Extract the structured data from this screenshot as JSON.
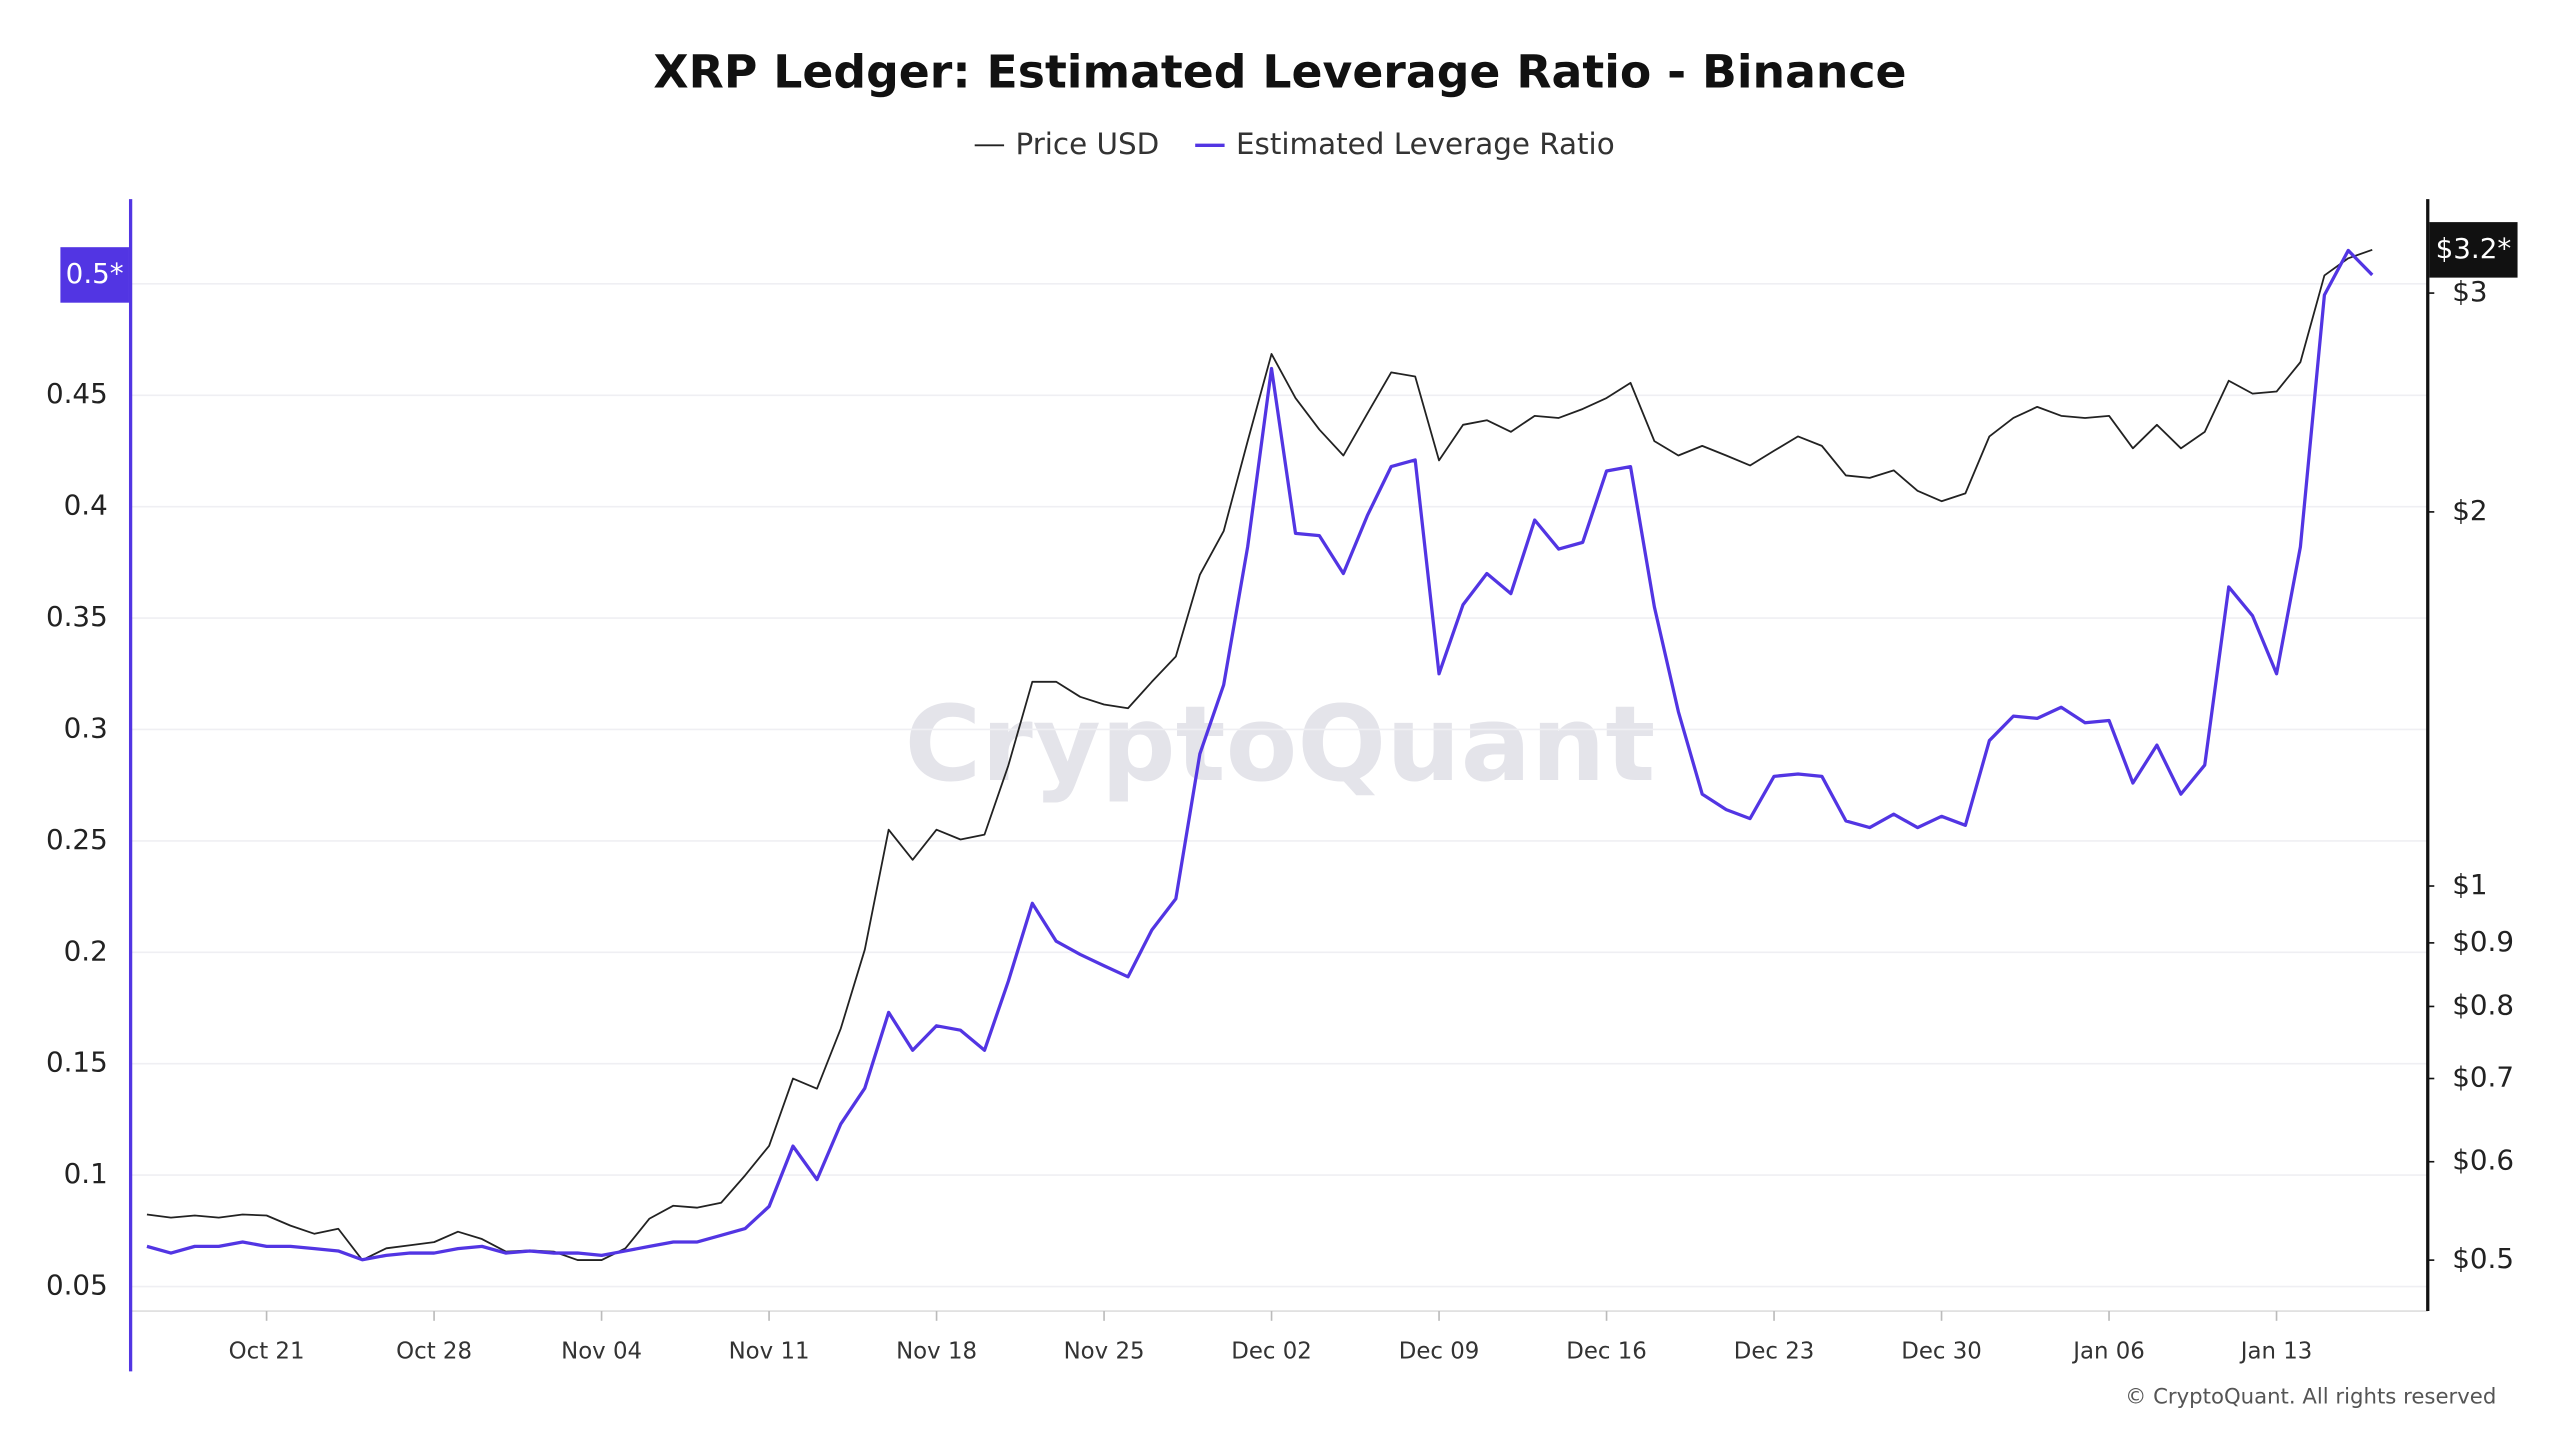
{
  "chart_data": {
    "type": "line",
    "title": "XRP Ledger: Estimated Leverage Ratio - Binance",
    "watermark": "CryptoQuant",
    "copyright": "© CryptoQuant. All rights reserved",
    "x": [
      "Oct 16",
      "Oct 17",
      "Oct 18",
      "Oct 19",
      "Oct 20",
      "Oct 21",
      "Oct 22",
      "Oct 23",
      "Oct 24",
      "Oct 25",
      "Oct 26",
      "Oct 27",
      "Oct 28",
      "Oct 29",
      "Oct 30",
      "Oct 31",
      "Nov 01",
      "Nov 02",
      "Nov 03",
      "Nov 04",
      "Nov 05",
      "Nov 06",
      "Nov 07",
      "Nov 08",
      "Nov 09",
      "Nov 10",
      "Nov 11",
      "Nov 12",
      "Nov 13",
      "Nov 14",
      "Nov 15",
      "Nov 16",
      "Nov 17",
      "Nov 18",
      "Nov 19",
      "Nov 20",
      "Nov 21",
      "Nov 22",
      "Nov 23",
      "Nov 24",
      "Nov 25",
      "Nov 26",
      "Nov 27",
      "Nov 28",
      "Nov 29",
      "Nov 30",
      "Dec 01",
      "Dec 02",
      "Dec 03",
      "Dec 04",
      "Dec 05",
      "Dec 06",
      "Dec 07",
      "Dec 08",
      "Dec 09",
      "Dec 10",
      "Dec 11",
      "Dec 12",
      "Dec 13",
      "Dec 14",
      "Dec 15",
      "Dec 16",
      "Dec 17",
      "Dec 18",
      "Dec 19",
      "Dec 20",
      "Dec 21",
      "Dec 22",
      "Dec 23",
      "Dec 24",
      "Dec 25",
      "Dec 26",
      "Dec 27",
      "Dec 28",
      "Dec 29",
      "Dec 30",
      "Dec 31",
      "Jan 01",
      "Jan 02",
      "Jan 03",
      "Jan 04",
      "Jan 05",
      "Jan 06",
      "Jan 07",
      "Jan 08",
      "Jan 09",
      "Jan 10",
      "Jan 11",
      "Jan 12",
      "Jan 13",
      "Jan 14",
      "Jan 15",
      "Jan 16",
      "Jan 17"
    ],
    "xticks": [
      "Oct 21",
      "Oct 28",
      "Nov 04",
      "Nov 11",
      "Nov 18",
      "Nov 25",
      "Dec 02",
      "Dec 09",
      "Dec 16",
      "Dec 23",
      "Dec 30",
      "Jan 06",
      "Jan 13"
    ],
    "series": [
      {
        "name": "Price USD",
        "color": "#222222",
        "axis": "y2",
        "values": [
          0.544,
          0.541,
          0.543,
          0.541,
          0.544,
          0.543,
          0.533,
          0.525,
          0.53,
          0.5,
          0.511,
          0.514,
          0.517,
          0.527,
          0.52,
          0.508,
          0.509,
          0.508,
          0.5,
          0.5,
          0.511,
          0.54,
          0.553,
          0.551,
          0.556,
          0.585,
          0.618,
          0.7,
          0.687,
          0.768,
          0.889,
          1.11,
          1.05,
          1.11,
          1.09,
          1.1,
          1.25,
          1.46,
          1.46,
          1.42,
          1.4,
          1.39,
          1.46,
          1.53,
          1.78,
          1.93,
          2.28,
          2.68,
          2.47,
          2.33,
          2.22,
          2.4,
          2.59,
          2.57,
          2.2,
          2.35,
          2.37,
          2.32,
          2.39,
          2.38,
          2.42,
          2.47,
          2.54,
          2.28,
          2.22,
          2.26,
          2.22,
          2.18,
          2.24,
          2.3,
          2.26,
          2.14,
          2.13,
          2.16,
          2.08,
          2.04,
          2.07,
          2.3,
          2.38,
          2.43,
          2.39,
          2.38,
          2.39,
          2.25,
          2.35,
          2.25,
          2.32,
          2.55,
          2.49,
          2.5,
          2.64,
          3.1,
          3.2,
          3.25
        ]
      },
      {
        "name": "Estimated Leverage Ratio",
        "color": "#5235e3",
        "values": [
          0.068,
          0.065,
          0.068,
          0.068,
          0.07,
          0.068,
          0.068,
          0.067,
          0.066,
          0.062,
          0.064,
          0.065,
          0.065,
          0.067,
          0.068,
          0.065,
          0.066,
          0.065,
          0.065,
          0.064,
          0.066,
          0.068,
          0.07,
          0.07,
          0.073,
          0.076,
          0.086,
          0.113,
          0.098,
          0.123,
          0.139,
          0.173,
          0.156,
          0.167,
          0.165,
          0.156,
          0.187,
          0.222,
          0.205,
          0.199,
          0.194,
          0.189,
          0.21,
          0.224,
          0.289,
          0.32,
          0.382,
          0.462,
          0.388,
          0.387,
          0.37,
          0.396,
          0.418,
          0.421,
          0.325,
          0.356,
          0.37,
          0.361,
          0.394,
          0.381,
          0.384,
          0.416,
          0.418,
          0.355,
          0.308,
          0.271,
          0.264,
          0.26,
          0.279,
          0.28,
          0.279,
          0.259,
          0.256,
          0.262,
          0.256,
          0.261,
          0.257,
          0.295,
          0.306,
          0.305,
          0.31,
          0.303,
          0.304,
          0.276,
          0.293,
          0.271,
          0.284,
          0.364,
          0.351,
          0.325,
          0.382,
          0.495,
          0.515,
          0.504
        ]
      }
    ],
    "ylim": [
      0.039,
      0.538
    ],
    "yticks": [
      0.05,
      0.1,
      0.15,
      0.2,
      0.25,
      0.3,
      0.35,
      0.4,
      0.45,
      0.5
    ],
    "y2lim": [
      0.455,
      3.57
    ],
    "y2scale": "log",
    "y2ticks": [
      {
        "value": 0.5,
        "label": "$0.5"
      },
      {
        "value": 0.6,
        "label": "$0.6"
      },
      {
        "value": 0.7,
        "label": "$0.7"
      },
      {
        "value": 0.8,
        "label": "$0.8"
      },
      {
        "value": 0.9,
        "label": "$0.9"
      },
      {
        "value": 1,
        "label": "$1"
      },
      {
        "value": 2,
        "label": "$2"
      },
      {
        "value": 3,
        "label": "$3"
      }
    ],
    "y_badge": "0.5*",
    "y2_badge": "$3.2*",
    "grid": true,
    "legend": "top"
  }
}
